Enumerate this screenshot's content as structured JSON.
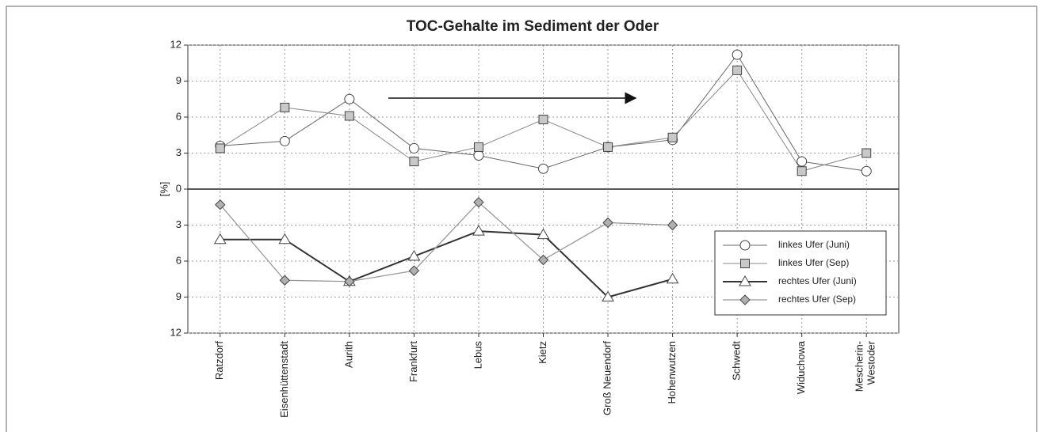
{
  "chart_data": {
    "type": "line",
    "title": "TOC-Gehalte im Sediment der Oder",
    "y_label": "[%]",
    "categories": [
      "Ratzdorf",
      "Eisenhüttenstadt",
      "Aurith",
      "Frankfurt",
      "Lebus",
      "Kietz",
      "Groß Neuendorf",
      "Hohenwutzen",
      "Schwedt",
      "Widuchowa",
      "Mescherin-\nWestoder"
    ],
    "series": [
      {
        "name": "linkes Ufer (Juni)",
        "color": "#666666",
        "marker": "circle",
        "marker_fill": "#ffffff",
        "width": 1,
        "values": [
          3.6,
          4.0,
          7.5,
          3.4,
          2.8,
          1.7,
          3.5,
          4.1,
          11.2,
          2.3,
          1.5
        ]
      },
      {
        "name": "linkes Ufer (Sep)",
        "color": "#888888",
        "marker": "square",
        "marker_fill": "#c8c8c8",
        "width": 1,
        "values": [
          3.4,
          6.8,
          6.1,
          2.3,
          3.5,
          5.8,
          3.5,
          4.3,
          9.9,
          1.5,
          3.0
        ]
      },
      {
        "name": "rechtes Ufer (Juni)",
        "color": "#333333",
        "marker": "triangle",
        "marker_fill": "#ffffff",
        "width": 2,
        "values": [
          -4.2,
          -4.2,
          -7.7,
          -5.6,
          -3.5,
          -3.8,
          -9.0,
          -7.5,
          null,
          null,
          null
        ]
      },
      {
        "name": "rechtes Ufer (Sep)",
        "color": "#999999",
        "marker": "diamond",
        "marker_fill": "#b0b0b0",
        "width": 1.3,
        "values": [
          -1.3,
          -7.6,
          -7.7,
          -6.8,
          -1.1,
          -5.9,
          -2.8,
          -3.0,
          null,
          null,
          null
        ]
      }
    ],
    "ylim": [
      -12,
      12
    ],
    "yticks": [
      12,
      9,
      6,
      3,
      0,
      {
        "value": -3,
        "label": "3"
      },
      {
        "value": -6,
        "label": "6"
      },
      {
        "value": -9,
        "label": "9"
      },
      {
        "value": -12,
        "label": "12"
      }
    ],
    "grid": true,
    "legend": "lower right"
  }
}
